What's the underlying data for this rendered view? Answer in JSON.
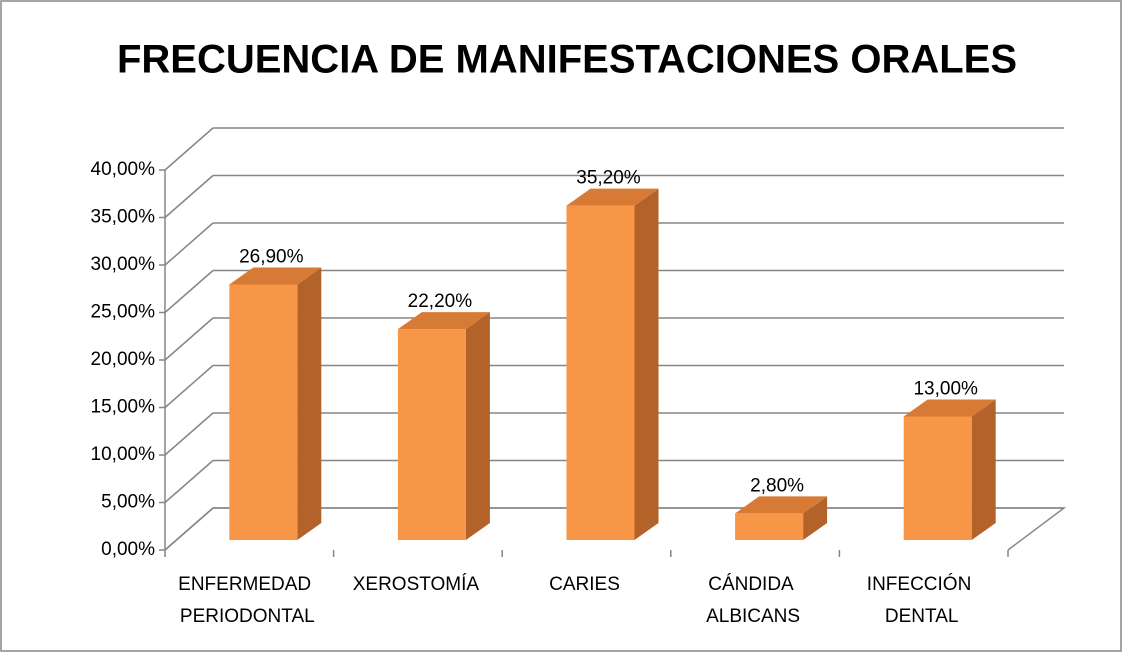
{
  "chart_data": {
    "type": "bar3d",
    "title": "FRECUENCIA DE MANIFESTACIONES ORALES",
    "categories": [
      "ENFERMEDAD PERIODONTAL",
      "XEROSTOMÍA",
      "CARIES",
      "CÁNDIDA ALBICANS",
      "INFECCIÓN DENTAL"
    ],
    "values": [
      26.9,
      22.2,
      35.2,
      2.8,
      13.0
    ],
    "value_labels": [
      "26,90%",
      "22,20%",
      "35,20%",
      "2,80%",
      "13,00%"
    ],
    "color": "#f79646",
    "ylim": [
      0,
      40
    ],
    "yticks": [
      {
        "value": 0,
        "label": "0,00%"
      },
      {
        "value": 5,
        "label": "5,00%"
      },
      {
        "value": 10,
        "label": "10,00%"
      },
      {
        "value": 15,
        "label": "15,00%"
      },
      {
        "value": 20,
        "label": "20,00%"
      },
      {
        "value": 25,
        "label": "25,00%"
      },
      {
        "value": 30,
        "label": "30,00%"
      },
      {
        "value": 35,
        "label": "35,00%"
      },
      {
        "value": 40,
        "label": "40,00%"
      }
    ],
    "grid": true
  }
}
